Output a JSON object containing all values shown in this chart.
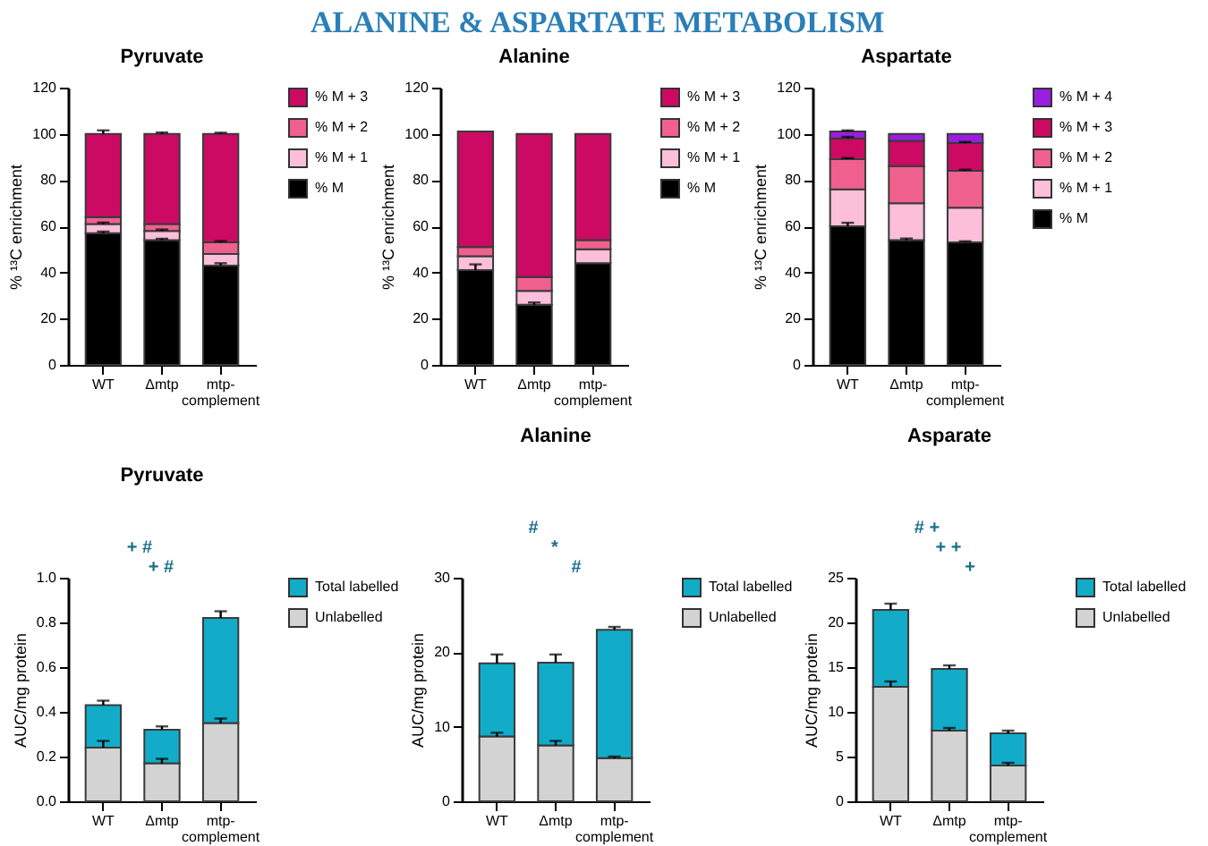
{
  "chart_data": [
    {
      "type": "other",
      "title": "ALANINE & ASPARTATE METABOLISM"
    },
    {
      "type": "bar",
      "stacked": true,
      "title": "Pyruvate",
      "ylabel": "% ¹³C enrichment",
      "categories": [
        "WT",
        "Δmtp",
        "mtp-complement"
      ],
      "ylim": [
        0,
        120
      ],
      "yticks": [
        0,
        20,
        40,
        60,
        80,
        100,
        120
      ],
      "legend": "right",
      "series": [
        {
          "name": "% M",
          "color": "#000000",
          "values": [
            57,
            54,
            43
          ],
          "errors": [
            0.7,
            0.6,
            1
          ]
        },
        {
          "name": "% M + 1",
          "color": "#fbbfd9",
          "values": [
            4,
            4,
            5
          ],
          "errors": [
            0.6,
            0.6,
            null
          ]
        },
        {
          "name": "% M + 2",
          "color": "#f0608f",
          "values": [
            3,
            3,
            5
          ],
          "errors": [
            null,
            null,
            0.6
          ]
        },
        {
          "name": "% M + 3",
          "color": "#cc0a64",
          "values": [
            36,
            39,
            47
          ],
          "errors": [
            1.5,
            0.6,
            0.5
          ]
        }
      ]
    },
    {
      "type": "bar",
      "stacked": true,
      "title": "Alanine",
      "ylabel": "% ¹³C enrichment",
      "categories": [
        "WT",
        "Δmtp",
        "mtp-complement"
      ],
      "ylim": [
        0,
        120
      ],
      "yticks": [
        0,
        20,
        40,
        60,
        80,
        100,
        120
      ],
      "legend": "right",
      "series": [
        {
          "name": "% M",
          "color": "#000000",
          "values": [
            41,
            26,
            44
          ],
          "errors": [
            2.5,
            1,
            null
          ]
        },
        {
          "name": "% M + 1",
          "color": "#fbbfd9",
          "values": [
            6,
            6,
            6
          ]
        },
        {
          "name": "% M + 2",
          "color": "#f0608f",
          "values": [
            4,
            6,
            4
          ]
        },
        {
          "name": "% M + 3",
          "color": "#cc0a64",
          "values": [
            50,
            62,
            46
          ]
        }
      ]
    },
    {
      "type": "bar",
      "stacked": true,
      "title": "Aspartate",
      "ylabel": "% ¹³C enrichment",
      "categories": [
        "WT",
        "Δmtp",
        "mtp-complement"
      ],
      "ylim": [
        0,
        120
      ],
      "yticks": [
        0,
        20,
        40,
        60,
        80,
        100,
        120
      ],
      "legend": "right",
      "series": [
        {
          "name": "% M",
          "color": "#000000",
          "values": [
            60,
            54,
            53
          ],
          "errors": [
            1.5,
            0.7,
            0.5
          ]
        },
        {
          "name": "% M + 1",
          "color": "#fbbfd9",
          "values": [
            16,
            16,
            15
          ]
        },
        {
          "name": "% M + 2",
          "color": "#f0608f",
          "values": [
            13,
            16,
            16
          ],
          "errors": [
            0.5,
            null,
            0.5
          ]
        },
        {
          "name": "% M + 3",
          "color": "#cc0a64",
          "values": [
            9,
            11,
            12
          ],
          "errors": [
            0.7,
            null,
            0.5
          ]
        },
        {
          "name": "% M + 4",
          "color": "#9a1ee0",
          "values": [
            3,
            3,
            4
          ],
          "errors": [
            0.5,
            null,
            null
          ]
        }
      ]
    },
    {
      "type": "bar",
      "stacked": true,
      "title": "Pyruvate",
      "ylabel": "AUC/mg protein",
      "categories": [
        "WT",
        "Δmtp",
        "mtp-complement"
      ],
      "ylim": [
        0,
        1
      ],
      "yticks": [
        {
          "value": 0,
          "label": "0.0"
        },
        0.2,
        0.4,
        0.6,
        0.8,
        {
          "value": 1,
          "label": "1.0"
        }
      ],
      "legend": "right",
      "annotations": [
        "+ #",
        "+ #"
      ],
      "series": [
        {
          "name": "Unlabelled",
          "color": "#d3d3d3",
          "values": [
            0.24,
            0.17,
            0.35
          ],
          "errors": [
            0.03,
            0.02,
            0.02
          ]
        },
        {
          "name": "Total labelled",
          "color": "#12acc9",
          "values": [
            0.19,
            0.15,
            0.47
          ],
          "errors": [
            0.02,
            0.015,
            0.03
          ]
        }
      ]
    },
    {
      "type": "bar",
      "stacked": true,
      "title": "Alanine",
      "ylabel": "AUC/mg protein",
      "categories": [
        "WT",
        "Δmtp",
        "mtp-complement"
      ],
      "ylim": [
        0,
        30
      ],
      "yticks": [
        0,
        10,
        20,
        30
      ],
      "legend": "right",
      "annotations": [
        "#",
        "*",
        "#"
      ],
      "series": [
        {
          "name": "Unlabelled",
          "color": "#d3d3d3",
          "values": [
            8.7,
            7.5,
            5.8
          ],
          "errors": [
            0.5,
            0.6,
            0.2
          ]
        },
        {
          "name": "Total labelled",
          "color": "#12acc9",
          "values": [
            9.8,
            11.1,
            17.2
          ],
          "errors": [
            1.2,
            1.1,
            0.4
          ]
        }
      ]
    },
    {
      "type": "bar",
      "stacked": true,
      "title": "Asparate",
      "ylabel": "AUC/mg protein",
      "categories": [
        "WT",
        "Δmtp",
        "mtp-complement"
      ],
      "ylim": [
        0,
        25
      ],
      "yticks": [
        0,
        5,
        10,
        15,
        20,
        25
      ],
      "legend": "right",
      "annotations": [
        "# +",
        "+ +",
        "+"
      ],
      "series": [
        {
          "name": "Unlabelled",
          "color": "#d3d3d3",
          "values": [
            12.8,
            7.9,
            4.0
          ],
          "errors": [
            0.6,
            0.3,
            0.3
          ]
        },
        {
          "name": "Total labelled",
          "color": "#12acc9",
          "values": [
            8.6,
            6.9,
            3.6
          ],
          "errors": [
            0.7,
            0.4,
            0.3
          ]
        }
      ]
    }
  ]
}
